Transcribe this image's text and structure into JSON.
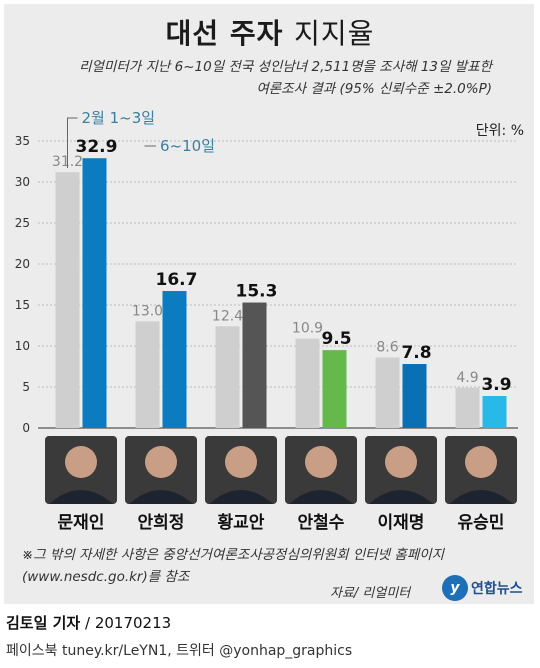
{
  "title": {
    "bold": "대선 주자",
    "light": "지지율"
  },
  "subtitle": {
    "line1": "리얼미터가 지난 6~10일 전국 성인남녀 2,511명을 조사해 13일 발표한",
    "line2": "여론조사 결과 (95% 신뢰수준 ±2.0%P)"
  },
  "unit": "단위: %",
  "chart_data": {
    "type": "bar",
    "categories": [
      "문재인",
      "안희정",
      "황교안",
      "안철수",
      "이재명",
      "유승민"
    ],
    "series": [
      {
        "name": "2월 1~3일",
        "values": [
          31.2,
          13.0,
          12.4,
          10.9,
          8.6,
          4.9
        ]
      },
      {
        "name": "6~10일",
        "values": [
          32.9,
          16.7,
          15.3,
          9.5,
          7.8,
          3.9
        ]
      }
    ],
    "value_labels": [
      [
        "31.2",
        "13.0",
        "12.4",
        "10.9",
        "8.6",
        "4.9"
      ],
      [
        "32.9",
        "16.7",
        "15.3",
        "9.5",
        "7.8",
        "3.9"
      ]
    ],
    "yticks": [
      "0",
      "5",
      "10",
      "15",
      "20",
      "25",
      "30",
      "35"
    ],
    "ylim": [
      0,
      35
    ],
    "grid": true,
    "legend": "callout-top-left",
    "colors": {
      "previous": "#cfcfcf",
      "current": [
        "#0a7cbf",
        "#0a7cbf",
        "#555555",
        "#65b84a",
        "#0a6fb3",
        "#29b9e8"
      ]
    }
  },
  "footnote": {
    "line1": "※그 밖의 자세한 사항은 중앙선거여론조사공정심의위원회 인터넷 홈페이지",
    "line2": "(www.nesdc.go.kr)를 참조"
  },
  "source": "자료/ 리얼미터",
  "logo": {
    "mark": "y",
    "text": "연합뉴스"
  },
  "byline": {
    "name": "김토일 기자",
    "date": " / 20170213"
  },
  "social": "페이스북 tuney.kr/LeYN1, 트위터 @yonhap_graphics"
}
